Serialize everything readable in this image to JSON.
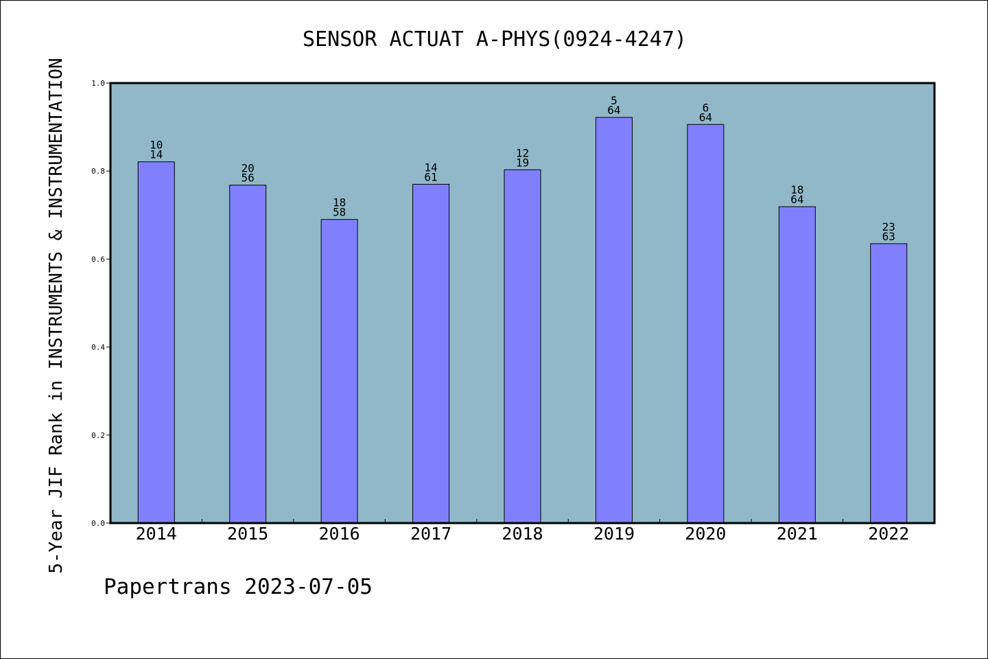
{
  "footer": "Papertrans 2023-07-05",
  "chart_data": {
    "type": "bar",
    "title": "SENSOR ACTUAT A-PHYS(0924-4247)",
    "xlabel": "",
    "ylabel": "5-Year JIF Rank in INSTRUMENTS & INSTRUMENTATION",
    "ylim": [
      0,
      1.0
    ],
    "yticks": [
      "0.0",
      "0.2",
      "0.4",
      "0.6",
      "0.8",
      "1.0"
    ],
    "grid": false,
    "colors": {
      "plot_bg": "#90b8c8",
      "bar": "#8080ff",
      "bar_edge": "#000000"
    },
    "categories": [
      "2014",
      "2015",
      "2016",
      "2017",
      "2018",
      "2019",
      "2020",
      "2021",
      "2022"
    ],
    "values": [
      0.821,
      0.768,
      0.69,
      0.77,
      0.803,
      0.922,
      0.906,
      0.719,
      0.635
    ],
    "rank": [
      "10",
      "20",
      "18",
      "14",
      "12",
      "5",
      "6",
      "18",
      "23"
    ],
    "total": [
      "14",
      "56",
      "58",
      "61",
      "19",
      "64",
      "64",
      "64",
      "63"
    ]
  }
}
